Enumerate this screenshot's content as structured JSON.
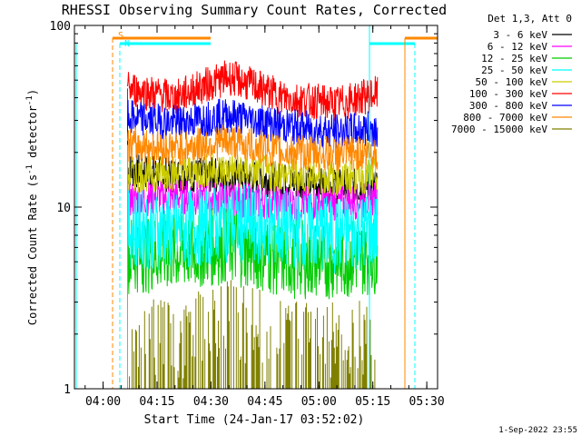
{
  "chart_data": {
    "type": "line",
    "title": "RHESSI Observing Summary Count Rates, Corrected",
    "xlabel": "Start Time (24-Jan-17 03:52:02)",
    "ylabel": "Corrected Count Rate (s",
    "ylabel_sup1": "-1",
    "ylabel_mid": " detector",
    "ylabel_sup2": "-1",
    "ylabel_end": ")",
    "footer_stamp": "1-Sep-2022 23:55",
    "y_scale": "log",
    "ylim": [
      1,
      100
    ],
    "xlim": [
      "03:52:02",
      "05:33:00"
    ],
    "y_ticks": [
      {
        "value": 1,
        "label": "1"
      },
      {
        "value": 10,
        "label": "10"
      },
      {
        "value": 100,
        "label": "100"
      }
    ],
    "x_ticks": [
      {
        "value": "04:00",
        "label": "04:00"
      },
      {
        "value": "04:15",
        "label": "04:15"
      },
      {
        "value": "04:30",
        "label": "04:30"
      },
      {
        "value": "04:45",
        "label": "04:45"
      },
      {
        "value": "05:00",
        "label": "05:00"
      },
      {
        "value": "05:15",
        "label": "05:15"
      },
      {
        "value": "05:30",
        "label": "05:30"
      }
    ],
    "legend": {
      "title": "Det 1,3, Att 0",
      "placement": "outside-right"
    },
    "series": [
      {
        "name": "3 - 6 keV",
        "color": "#000000",
        "x": [
          "04:07",
          "04:20",
          "04:35",
          "04:50",
          "05:05",
          "05:16"
        ],
        "y": [
          16,
          15,
          15,
          14,
          13,
          13
        ]
      },
      {
        "name": "6 - 12 keV",
        "color": "#ff00ff",
        "x": [
          "04:07",
          "04:20",
          "04:35",
          "04:50",
          "05:05",
          "05:16"
        ],
        "y": [
          11,
          11.5,
          11,
          10.5,
          10.5,
          11
        ]
      },
      {
        "name": "12 - 25 keV",
        "color": "#00cc00",
        "x": [
          "04:07",
          "04:20",
          "04:35",
          "04:50",
          "05:05",
          "05:16"
        ],
        "y": [
          5.5,
          5.6,
          6.2,
          5.2,
          5.1,
          5.5
        ]
      },
      {
        "name": "25 - 50 keV",
        "color": "#00ffff",
        "x": [
          "04:07",
          "04:20",
          "04:35",
          "04:50",
          "05:05",
          "05:16"
        ],
        "y": [
          7.6,
          7.4,
          8.2,
          7.6,
          7.0,
          7.5
        ]
      },
      {
        "name": "50 - 100 keV",
        "color": "#cccc00",
        "x": [
          "04:07",
          "04:20",
          "04:35",
          "04:50",
          "05:05",
          "05:16"
        ],
        "y": [
          15,
          15.5,
          16,
          15,
          14.5,
          15
        ]
      },
      {
        "name": "100 - 300 keV",
        "color": "#ff0000",
        "x": [
          "04:07",
          "04:20",
          "04:35",
          "04:50",
          "05:05",
          "05:16"
        ],
        "y": [
          45,
          40,
          52,
          40,
          37,
          42
        ]
      },
      {
        "name": "300 - 800 keV",
        "color": "#0000ff",
        "x": [
          "04:07",
          "04:20",
          "04:35",
          "04:50",
          "05:05",
          "05:16"
        ],
        "y": [
          31,
          29,
          32,
          28,
          26,
          27
        ]
      },
      {
        "name": "800 - 7000 keV",
        "color": "#ff8800",
        "x": [
          "04:07",
          "04:20",
          "04:35",
          "04:50",
          "05:05",
          "05:16"
        ],
        "y": [
          22,
          21,
          23,
          20,
          19.5,
          20
        ]
      },
      {
        "name": "7000 - 15000 keV",
        "color": "#808000",
        "x": [
          "04:07",
          "04:20",
          "04:35",
          "04:50",
          "05:05",
          "05:16"
        ],
        "y": [
          1.3,
          1.2,
          1.6,
          1.3,
          1.2,
          1.3
        ]
      }
    ],
    "annotations": [
      {
        "label": "S",
        "color": "#ff8800"
      },
      {
        "label": "N",
        "color": "#00ffff"
      }
    ]
  }
}
